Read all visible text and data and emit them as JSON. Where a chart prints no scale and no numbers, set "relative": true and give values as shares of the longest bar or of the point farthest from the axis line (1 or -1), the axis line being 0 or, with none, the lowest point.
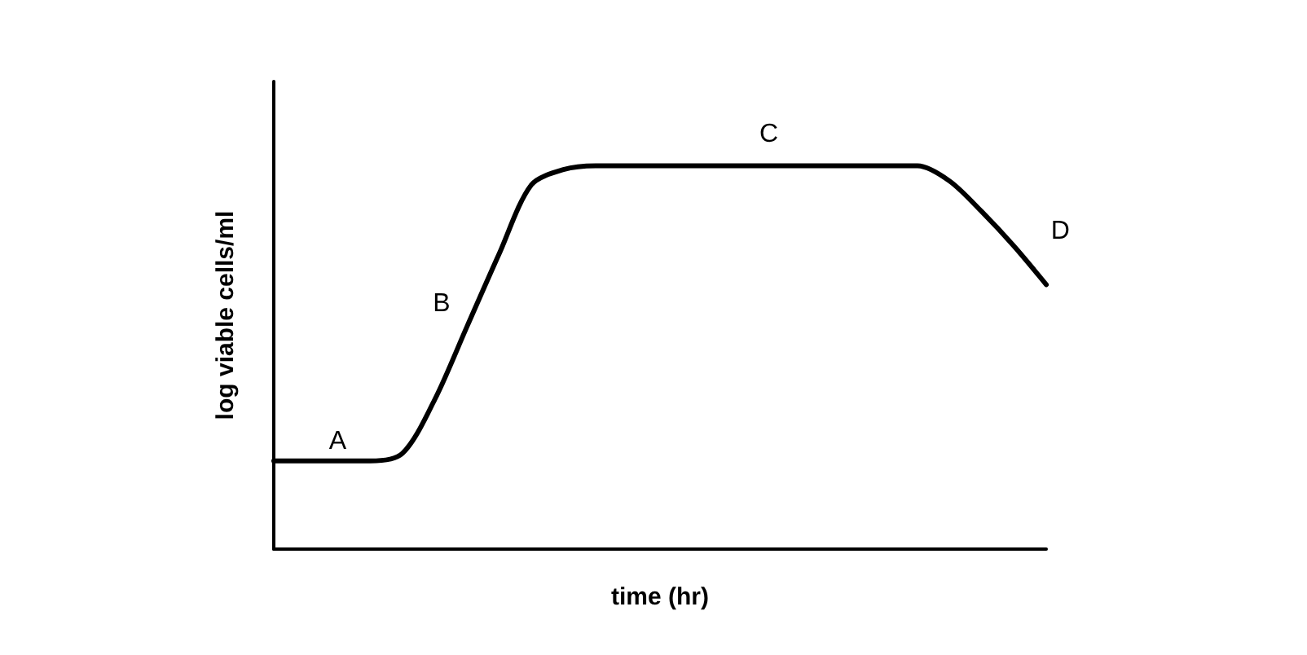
{
  "chart_data": {
    "type": "line",
    "relative": true,
    "xlabel": "time (hr)",
    "ylabel": "log viable cells/ml",
    "marker": "none",
    "line_style": "solid",
    "grid": false,
    "categories": [
      null,
      null,
      null,
      null,
      null,
      null,
      null,
      null,
      null,
      null,
      null,
      null,
      null,
      null,
      null,
      null,
      null,
      null,
      null,
      null,
      null,
      null,
      null,
      null,
      null
    ],
    "series": [
      {
        "color": "#000000",
        "values": [
          0.23,
          0.23,
          0.23,
          0.23,
          0.25,
          0.39,
          0.58,
          0.77,
          0.95,
          0.99,
          1,
          1,
          1,
          1,
          1,
          1,
          1,
          1,
          1,
          1,
          1,
          0.96,
          0.88,
          0.79,
          0.69
        ]
      }
    ],
    "annotations": [
      "A",
      "B",
      "C",
      "D"
    ]
  }
}
